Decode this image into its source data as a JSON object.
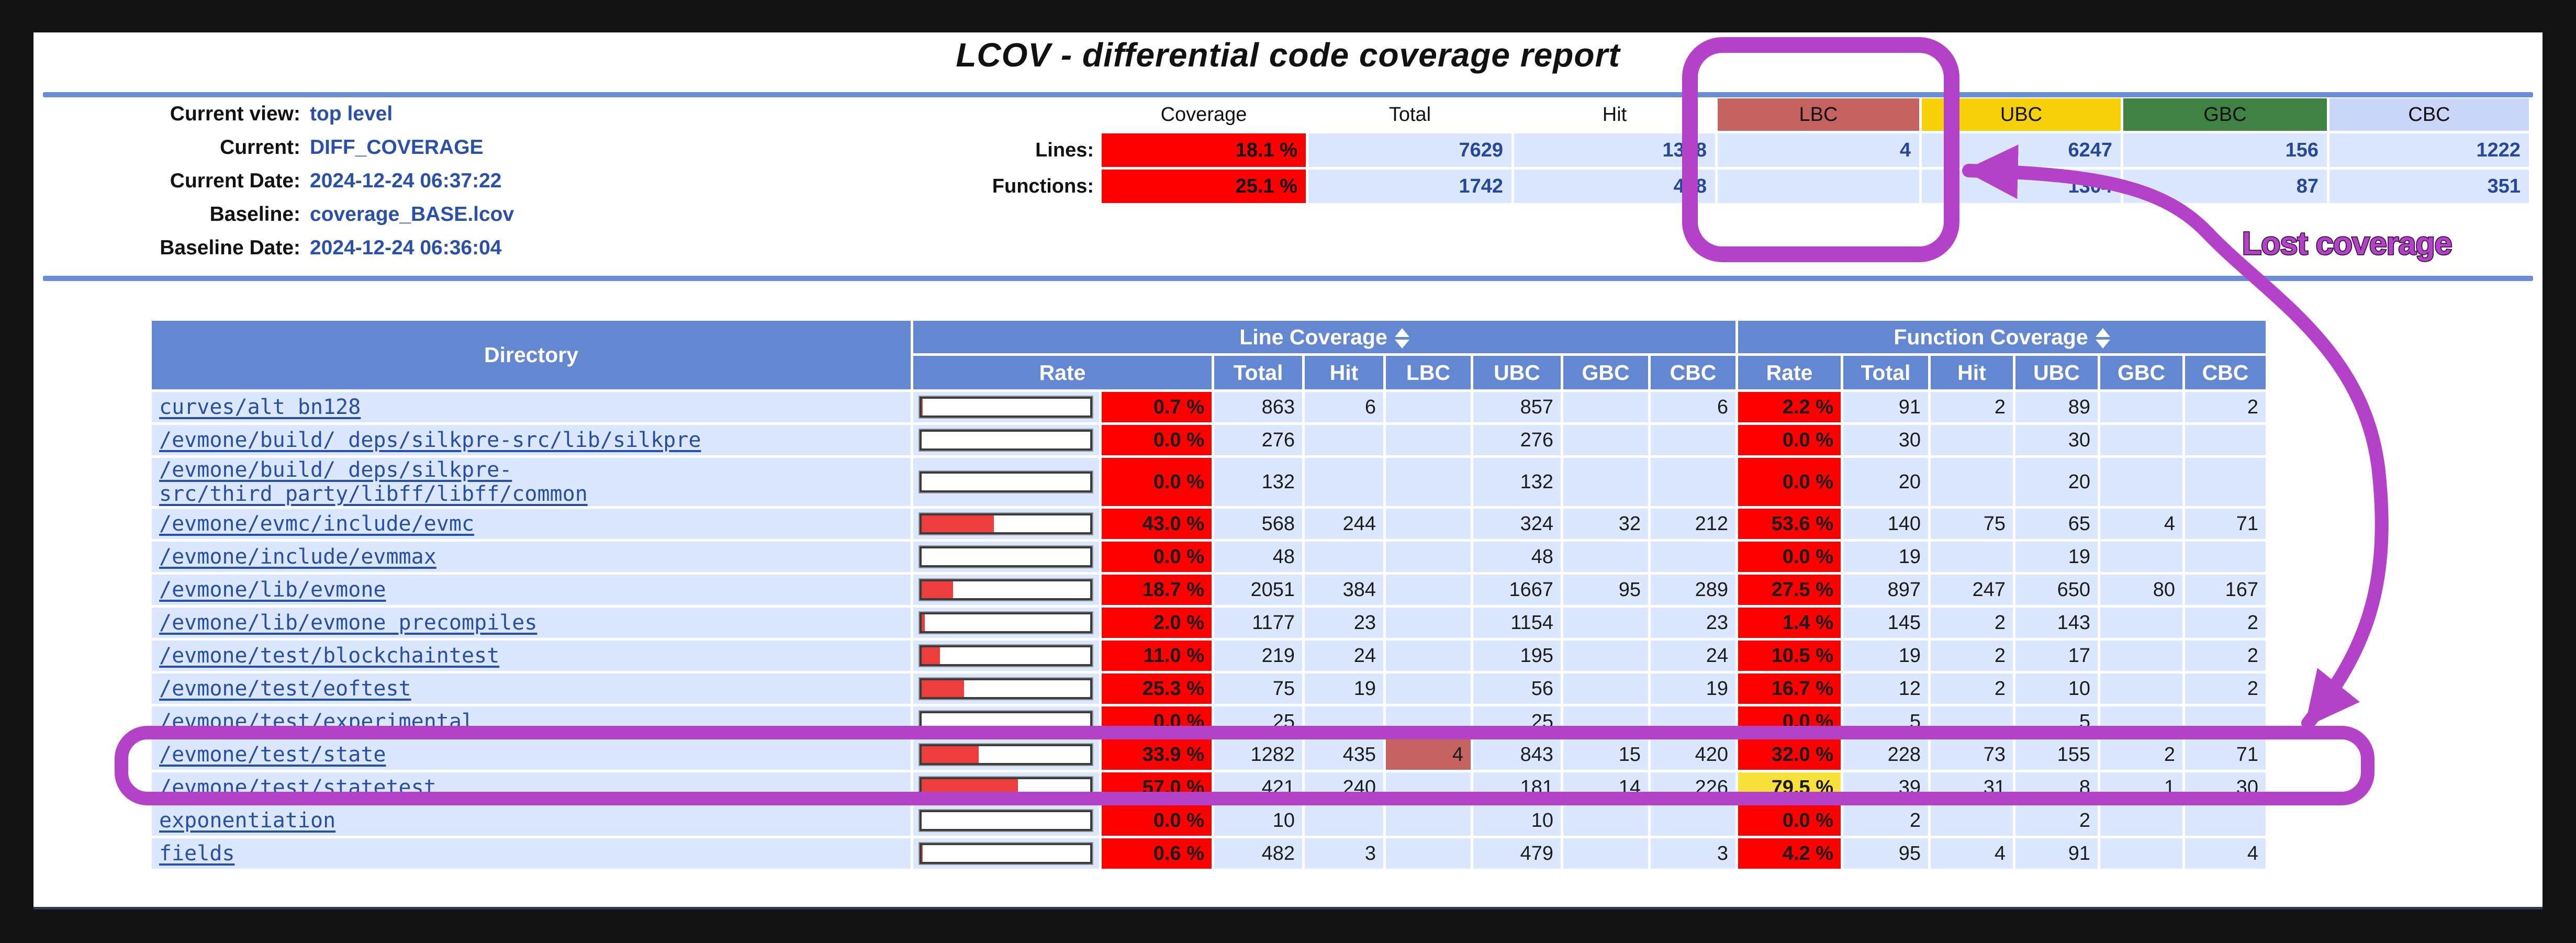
{
  "title": "LCOV - differential code coverage report",
  "annotation": {
    "label": "Lost coverage"
  },
  "colors": {
    "accent_purple": "#b342c9",
    "rate_low_red": "#fe0000",
    "rate_med_yellow": "#f9e13c",
    "lbc": "#c4635f",
    "ubc": "#f6d10a",
    "gbc": "#3f8243",
    "cbc": "#c9d6f8",
    "header_blue": "#6487d2",
    "row_blue": "#dae7fe"
  },
  "header": {
    "fields": [
      {
        "label": "Current view:",
        "value": "top level"
      },
      {
        "label": "Current:",
        "value": "DIFF_COVERAGE"
      },
      {
        "label": "Current Date:",
        "value": "2024-12-24 06:37:22"
      },
      {
        "label": "Baseline:",
        "value": "coverage_BASE.lcov"
      },
      {
        "label": "Baseline Date:",
        "value": "2024-12-24 06:36:04"
      }
    ],
    "summary": {
      "columns": [
        "Coverage",
        "Total",
        "Hit",
        "LBC",
        "UBC",
        "GBC",
        "CBC"
      ],
      "rows": [
        {
          "label": "Lines:",
          "coverage": "18.1 %",
          "total": "7629",
          "hit": "1378",
          "lbc": "4",
          "ubc": "6247",
          "gbc": "156",
          "cbc": "1222"
        },
        {
          "label": "Functions:",
          "coverage": "25.1 %",
          "total": "1742",
          "hit": "438",
          "lbc": "",
          "ubc": "1304",
          "gbc": "87",
          "cbc": "351"
        }
      ]
    }
  },
  "table": {
    "directory_header": "Directory",
    "line_header": "Line Coverage",
    "function_header": "Function Coverage",
    "line_sub_headers": [
      "Rate",
      "Total",
      "Hit",
      "LBC",
      "UBC",
      "GBC",
      "CBC"
    ],
    "function_sub_headers": [
      "Rate",
      "Total",
      "Hit",
      "UBC",
      "GBC",
      "CBC"
    ],
    "rows": [
      {
        "name": "curves/alt_bn128",
        "rate": "0.7 %",
        "level": "red",
        "total": "863",
        "hit": "6",
        "lbc": "",
        "lbc_highlight": false,
        "ubc": "857",
        "gbc": "",
        "cbc": "6",
        "fn_rate": "2.2 %",
        "fn_level": "red",
        "fn_total": "91",
        "fn_hit": "2",
        "fn_ubc": "89",
        "fn_gbc": "",
        "fn_cbc": "2"
      },
      {
        "name": "/evmone/build/_deps/silkpre-src/lib/silkpre",
        "rate": "0.0 %",
        "level": "red",
        "total": "276",
        "hit": "",
        "lbc": "",
        "lbc_highlight": false,
        "ubc": "276",
        "gbc": "",
        "cbc": "",
        "fn_rate": "0.0 %",
        "fn_level": "red",
        "fn_total": "30",
        "fn_hit": "",
        "fn_ubc": "30",
        "fn_gbc": "",
        "fn_cbc": ""
      },
      {
        "name": "/evmone/build/_deps/silkpre-src/third_party/libff/libff/common",
        "rate": "0.0 %",
        "level": "red",
        "total": "132",
        "hit": "",
        "lbc": "",
        "lbc_highlight": false,
        "ubc": "132",
        "gbc": "",
        "cbc": "",
        "fn_rate": "0.0 %",
        "fn_level": "red",
        "fn_total": "20",
        "fn_hit": "",
        "fn_ubc": "20",
        "fn_gbc": "",
        "fn_cbc": ""
      },
      {
        "name": "/evmone/evmc/include/evmc",
        "rate": "43.0 %",
        "level": "red",
        "total": "568",
        "hit": "244",
        "lbc": "",
        "lbc_highlight": false,
        "ubc": "324",
        "gbc": "32",
        "cbc": "212",
        "fn_rate": "53.6 %",
        "fn_level": "red",
        "fn_total": "140",
        "fn_hit": "75",
        "fn_ubc": "65",
        "fn_gbc": "4",
        "fn_cbc": "71"
      },
      {
        "name": "/evmone/include/evmmax",
        "rate": "0.0 %",
        "level": "red",
        "total": "48",
        "hit": "",
        "lbc": "",
        "lbc_highlight": false,
        "ubc": "48",
        "gbc": "",
        "cbc": "",
        "fn_rate": "0.0 %",
        "fn_level": "red",
        "fn_total": "19",
        "fn_hit": "",
        "fn_ubc": "19",
        "fn_gbc": "",
        "fn_cbc": ""
      },
      {
        "name": "/evmone/lib/evmone",
        "rate": "18.7 %",
        "level": "red",
        "total": "2051",
        "hit": "384",
        "lbc": "",
        "lbc_highlight": false,
        "ubc": "1667",
        "gbc": "95",
        "cbc": "289",
        "fn_rate": "27.5 %",
        "fn_level": "red",
        "fn_total": "897",
        "fn_hit": "247",
        "fn_ubc": "650",
        "fn_gbc": "80",
        "fn_cbc": "167"
      },
      {
        "name": "/evmone/lib/evmone_precompiles",
        "rate": "2.0 %",
        "level": "red",
        "total": "1177",
        "hit": "23",
        "lbc": "",
        "lbc_highlight": false,
        "ubc": "1154",
        "gbc": "",
        "cbc": "23",
        "fn_rate": "1.4 %",
        "fn_level": "red",
        "fn_total": "145",
        "fn_hit": "2",
        "fn_ubc": "143",
        "fn_gbc": "",
        "fn_cbc": "2"
      },
      {
        "name": "/evmone/test/blockchaintest",
        "rate": "11.0 %",
        "level": "red",
        "total": "219",
        "hit": "24",
        "lbc": "",
        "lbc_highlight": false,
        "ubc": "195",
        "gbc": "",
        "cbc": "24",
        "fn_rate": "10.5 %",
        "fn_level": "red",
        "fn_total": "19",
        "fn_hit": "2",
        "fn_ubc": "17",
        "fn_gbc": "",
        "fn_cbc": "2"
      },
      {
        "name": "/evmone/test/eoftest",
        "rate": "25.3 %",
        "level": "red",
        "total": "75",
        "hit": "19",
        "lbc": "",
        "lbc_highlight": false,
        "ubc": "56",
        "gbc": "",
        "cbc": "19",
        "fn_rate": "16.7 %",
        "fn_level": "red",
        "fn_total": "12",
        "fn_hit": "2",
        "fn_ubc": "10",
        "fn_gbc": "",
        "fn_cbc": "2"
      },
      {
        "name": "/evmone/test/experimental",
        "rate": "0.0 %",
        "level": "red",
        "total": "25",
        "hit": "",
        "lbc": "",
        "lbc_highlight": false,
        "ubc": "25",
        "gbc": "",
        "cbc": "",
        "fn_rate": "0.0 %",
        "fn_level": "red",
        "fn_total": "5",
        "fn_hit": "",
        "fn_ubc": "5",
        "fn_gbc": "",
        "fn_cbc": ""
      },
      {
        "name": "/evmone/test/state",
        "rate": "33.9 %",
        "level": "red",
        "total": "1282",
        "hit": "435",
        "lbc": "4",
        "lbc_highlight": true,
        "ubc": "843",
        "gbc": "15",
        "cbc": "420",
        "fn_rate": "32.0 %",
        "fn_level": "red",
        "fn_total": "228",
        "fn_hit": "73",
        "fn_ubc": "155",
        "fn_gbc": "2",
        "fn_cbc": "71"
      },
      {
        "name": "/evmone/test/statetest",
        "rate": "57.0 %",
        "level": "red",
        "total": "421",
        "hit": "240",
        "lbc": "",
        "lbc_highlight": false,
        "ubc": "181",
        "gbc": "14",
        "cbc": "226",
        "fn_rate": "79.5 %",
        "fn_level": "yellow",
        "fn_total": "39",
        "fn_hit": "31",
        "fn_ubc": "8",
        "fn_gbc": "1",
        "fn_cbc": "30"
      },
      {
        "name": "exponentiation",
        "rate": "0.0 %",
        "level": "red",
        "total": "10",
        "hit": "",
        "lbc": "",
        "lbc_highlight": false,
        "ubc": "10",
        "gbc": "",
        "cbc": "",
        "fn_rate": "0.0 %",
        "fn_level": "red",
        "fn_total": "2",
        "fn_hit": "",
        "fn_ubc": "2",
        "fn_gbc": "",
        "fn_cbc": ""
      },
      {
        "name": "fields",
        "rate": "0.6 %",
        "level": "red",
        "total": "482",
        "hit": "3",
        "lbc": "",
        "lbc_highlight": false,
        "ubc": "479",
        "gbc": "",
        "cbc": "3",
        "fn_rate": "4.2 %",
        "fn_level": "red",
        "fn_total": "95",
        "fn_hit": "4",
        "fn_ubc": "91",
        "fn_gbc": "",
        "fn_cbc": "4"
      }
    ]
  }
}
